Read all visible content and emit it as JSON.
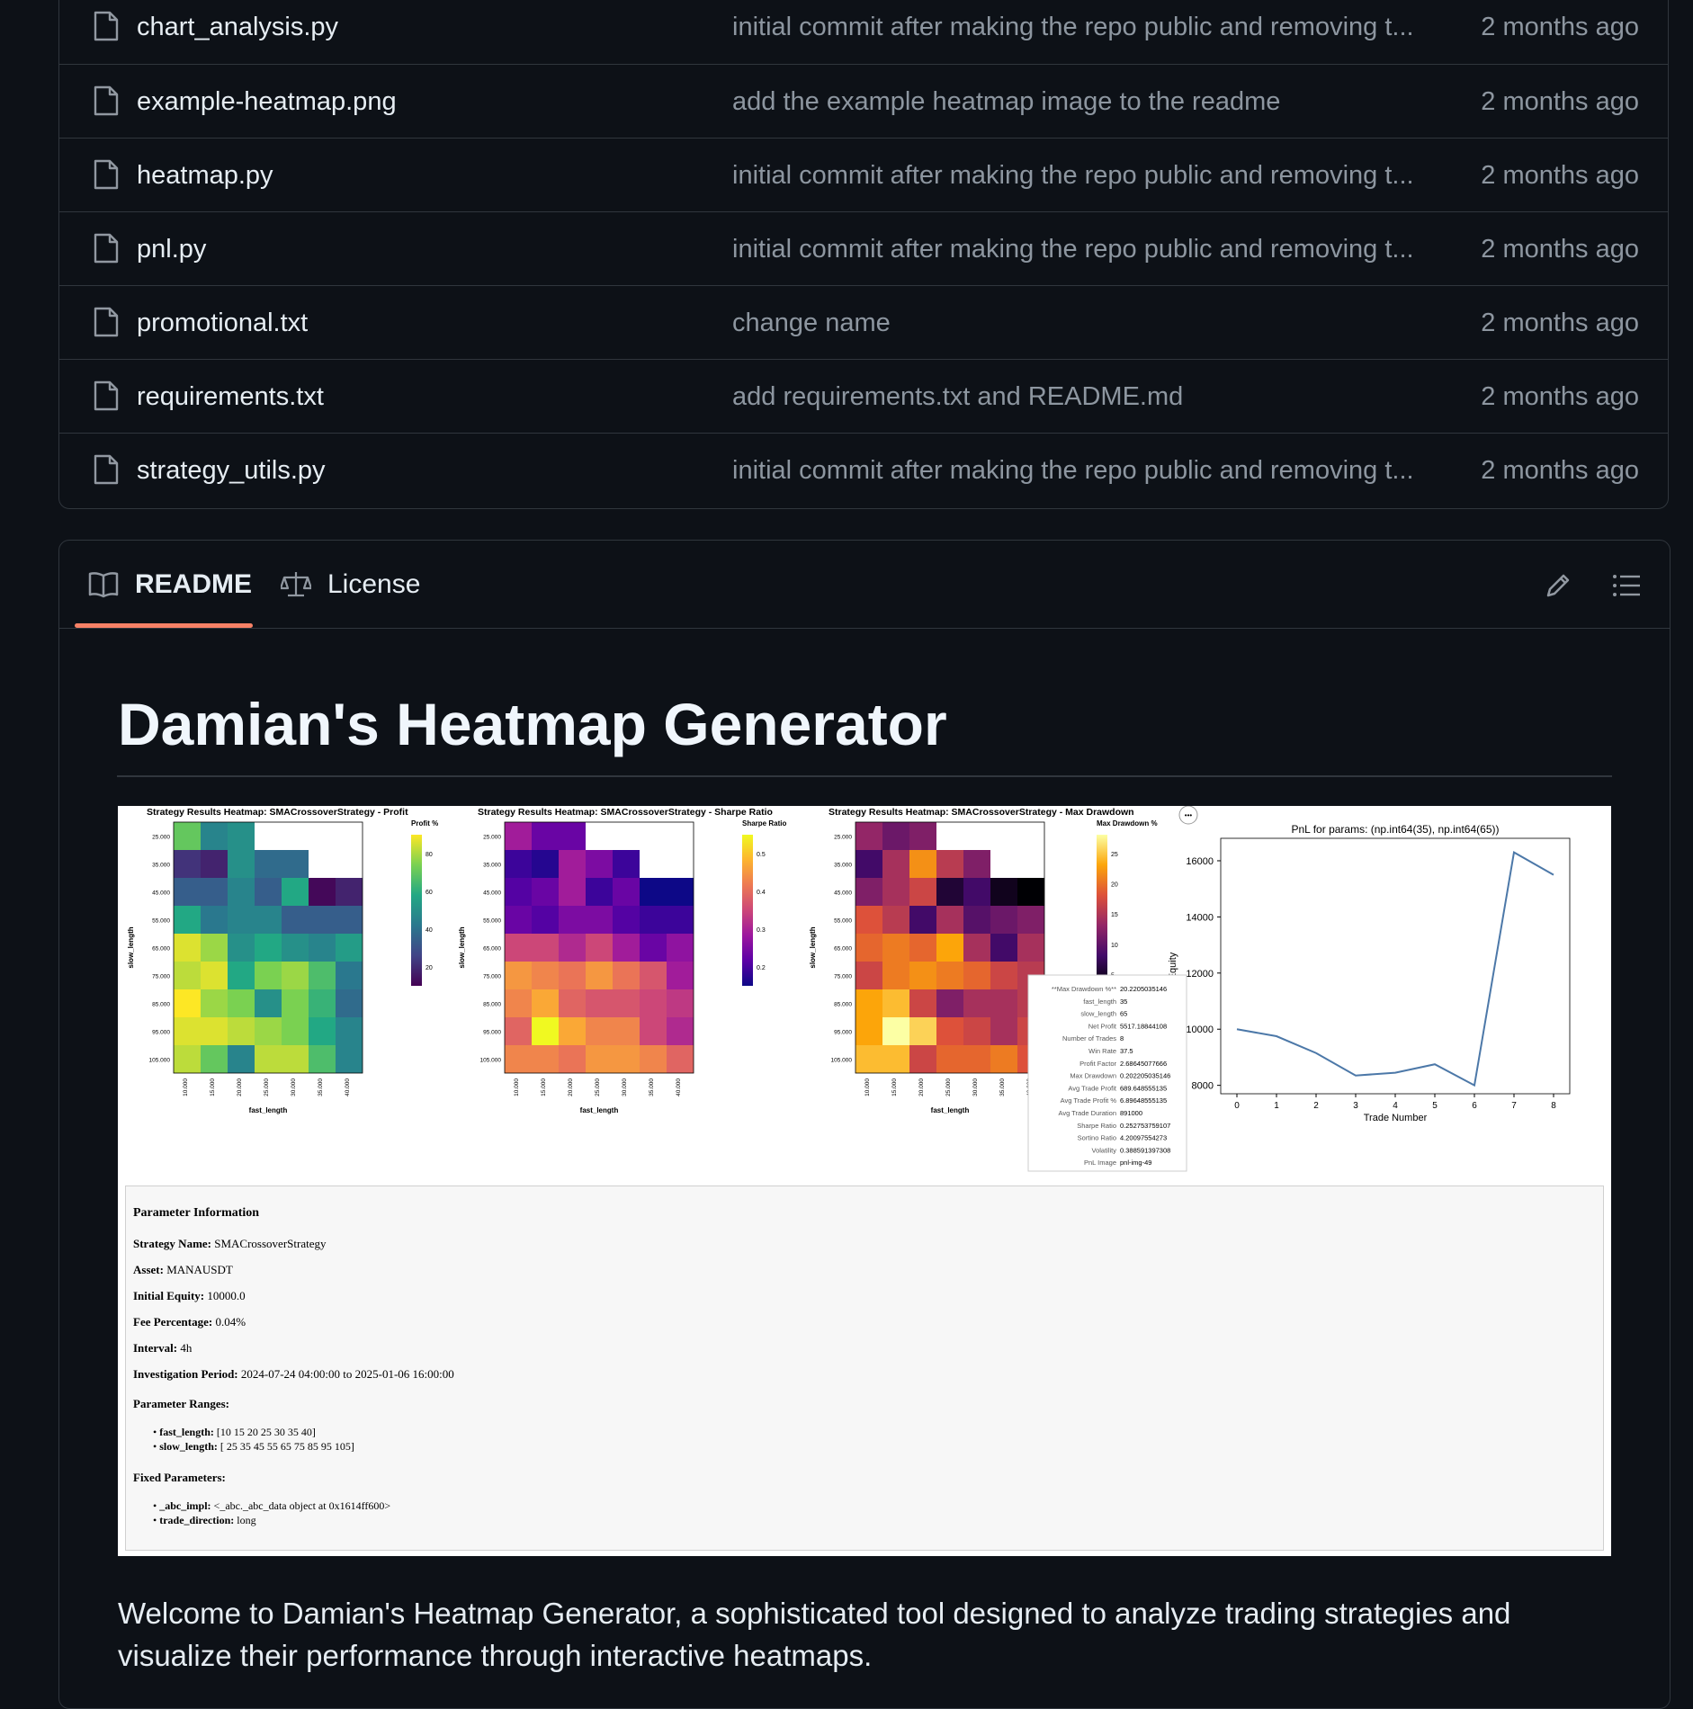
{
  "files": [
    {
      "name": "chart_analysis.py",
      "message": "initial commit after making the repo public and removing t...",
      "date": "2 months ago"
    },
    {
      "name": "example-heatmap.png",
      "message": "add the example heatmap image to the readme",
      "date": "2 months ago"
    },
    {
      "name": "heatmap.py",
      "message": "initial commit after making the repo public and removing t...",
      "date": "2 months ago"
    },
    {
      "name": "pnl.py",
      "message": "initial commit after making the repo public and removing t...",
      "date": "2 months ago"
    },
    {
      "name": "promotional.txt",
      "message": "change name",
      "date": "2 months ago"
    },
    {
      "name": "requirements.txt",
      "message": "add requirements.txt and README.md",
      "date": "2 months ago"
    },
    {
      "name": "strategy_utils.py",
      "message": "initial commit after making the repo public and removing t...",
      "date": "2 months ago"
    }
  ],
  "readme": {
    "tabs": {
      "readme": "README",
      "license": "License"
    },
    "title": "Damian's Heatmap Generator",
    "welcome": "Welcome to Damian's Heatmap Generator, a sophisticated tool designed to analyze trading strategies and visualize their performance through interactive heatmaps."
  },
  "figure": {
    "heatmaps": [
      {
        "title": "Strategy Results Heatmap: SMACrossoverStrategy - Profit",
        "cbar_label": "Profit %",
        "cbar_ticks": [
          "80",
          "60",
          "40",
          "20"
        ]
      },
      {
        "title": "Strategy Results Heatmap: SMACrossoverStrategy - Sharpe Ratio",
        "cbar_label": "Sharpe Ratio",
        "cbar_ticks": [
          "0.5",
          "0.4",
          "0.3",
          "0.2"
        ]
      },
      {
        "title": "Strategy Results Heatmap: SMACrossoverStrategy - Max Drawdown",
        "cbar_label": "Max Drawdown %",
        "cbar_ticks": [
          "25",
          "20",
          "15",
          "10",
          "5"
        ]
      }
    ],
    "axes": {
      "y_label": "slow_length",
      "x_label": "fast_length",
      "y_ticks": [
        "25.000",
        "35.000",
        "45.000",
        "55.000",
        "65.000",
        "75.000",
        "85.000",
        "95.000",
        "105.000"
      ],
      "x_ticks": [
        "10.000",
        "15.000",
        "20.000",
        "25.000",
        "30.000",
        "35.000",
        "40.000"
      ]
    },
    "tooltip": [
      [
        "**Max Drawdown %**",
        "20.2205035146"
      ],
      [
        "fast_length",
        "35"
      ],
      [
        "slow_length",
        "65"
      ],
      [
        "Net Profit",
        "5517.18844108"
      ],
      [
        "Number of Trades",
        "8"
      ],
      [
        "Win Rate",
        "37.5"
      ],
      [
        "Profit Factor",
        "2.68645077666"
      ],
      [
        "Max Drawdown",
        "0.202205035146"
      ],
      [
        "Avg Trade Profit",
        "689.648555135"
      ],
      [
        "Avg Trade Profit %",
        "6.89648555135"
      ],
      [
        "Avg Trade Duration",
        "891000"
      ],
      [
        "Sharpe Ratio",
        "0.252753759107"
      ],
      [
        "Sortino Ratio",
        "4.20097554273"
      ],
      [
        "Volatility",
        "0.388591397308"
      ],
      [
        "PnL Image",
        "pnl-img-49"
      ]
    ],
    "more_button": "•••",
    "params": {
      "heading": "Parameter Information",
      "strategy_label": "Strategy Name:",
      "strategy": "SMACrossoverStrategy",
      "asset_label": "Asset:",
      "asset": "MANAUSDT",
      "equity_label": "Initial Equity:",
      "equity": "10000.0",
      "fee_label": "Fee Percentage:",
      "fee": "0.04%",
      "interval_label": "Interval:",
      "interval": "4h",
      "period_label": "Investigation Period:",
      "period": "2024-07-24 04:00:00 to 2025-01-06 16:00:00",
      "ranges_heading": "Parameter Ranges:",
      "fast_label": "fast_length:",
      "fast": "[10 15 20 25 30 35 40]",
      "slow_label": "slow_length:",
      "slow": "[ 25 35 45 55 65 75 85 95 105]",
      "fixed_heading": "Fixed Parameters:",
      "abc_label": "_abc_impl:",
      "abc": "<_abc._abc_data object at 0x1614ff600>",
      "dir_label": "trade_direction:",
      "dir": "long"
    }
  },
  "chart_data": {
    "type": "line",
    "title": "PnL for params: (np.int64(35), np.int64(65))",
    "xlabel": "Trade Number",
    "ylabel": "Equity",
    "x": [
      0,
      1,
      2,
      3,
      4,
      5,
      6,
      7,
      8
    ],
    "y": [
      10000,
      9750,
      9150,
      8350,
      8450,
      8750,
      8000,
      16300,
      15500
    ],
    "ylim": [
      7700,
      16800
    ],
    "yticks": [
      "8000",
      "10000",
      "12000",
      "14000",
      "16000"
    ],
    "ytick_vals": [
      8000,
      10000,
      12000,
      14000,
      16000
    ],
    "xticks": [
      "0",
      "1",
      "2",
      "3",
      "4",
      "5",
      "6",
      "7",
      "8"
    ],
    "line_color": "#4c78a8"
  }
}
